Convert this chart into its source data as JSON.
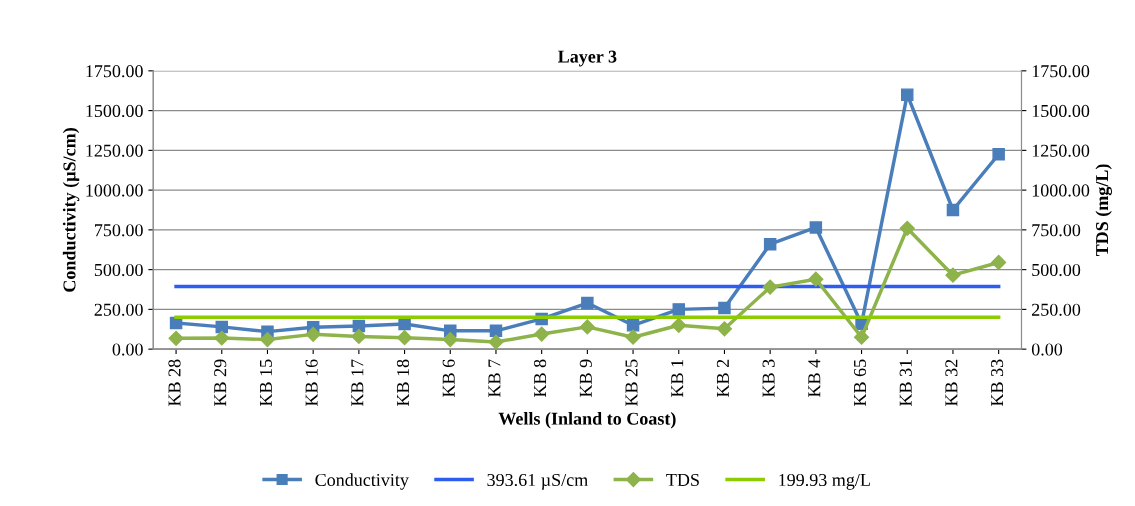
{
  "chart_data": {
    "type": "line",
    "title": "Layer 3",
    "xlabel": "Wells (Inland to Coast)",
    "ylabel": "Conductivity (µS/cm)",
    "y2label": "TDS (mg/L)",
    "categories": [
      "KB 28",
      "KB 29",
      "KB 15",
      "KB 16",
      "KB 17",
      "KB 18",
      "KB 6",
      "KB 7",
      "KB 8",
      "KB 9",
      "KB 25",
      "KB 1",
      "KB 2",
      "KB 3",
      "KB 4",
      "KB 65",
      "KB 31",
      "KB 32",
      "KB 33"
    ],
    "series": [
      {
        "name": "Conductivity",
        "color": "#4a7ebb",
        "marker": "square",
        "values": [
          165,
          140,
          110,
          138,
          145,
          158,
          115,
          115,
          190,
          290,
          150,
          250,
          258,
          660,
          765,
          160,
          1600,
          875,
          1225
        ]
      },
      {
        "name": "393.61 µS/cm",
        "color": "#2e5cf0",
        "marker": "none",
        "values": [
          393.61,
          393.61,
          393.61,
          393.61,
          393.61,
          393.61,
          393.61,
          393.61,
          393.61,
          393.61,
          393.61,
          393.61,
          393.61,
          393.61,
          393.61,
          393.61,
          393.61,
          393.61,
          393.61
        ]
      },
      {
        "name": "TDS",
        "color": "#8db34a",
        "marker": "diamond",
        "axis": "y2",
        "values": [
          68,
          70,
          60,
          93,
          80,
          72,
          60,
          45,
          95,
          140,
          75,
          150,
          128,
          390,
          440,
          75,
          760,
          465,
          545
        ]
      },
      {
        "name": "199.93 mg/L",
        "color": "#8ccc00",
        "marker": "none",
        "axis": "y2",
        "values": [
          199.93,
          199.93,
          199.93,
          199.93,
          199.93,
          199.93,
          199.93,
          199.93,
          199.93,
          199.93,
          199.93,
          199.93,
          199.93,
          199.93,
          199.93,
          199.93,
          199.93,
          199.93,
          199.93
        ]
      }
    ],
    "ylim": [
      0,
      1750
    ],
    "yticks": [
      {
        "value": 0,
        "label": "0.00"
      },
      {
        "value": 250,
        "label": "250.00"
      },
      {
        "value": 500,
        "label": "500.00"
      },
      {
        "value": 750,
        "label": "750.00"
      },
      {
        "value": 1000,
        "label": "1000.00"
      },
      {
        "value": 1250,
        "label": "1250.00"
      },
      {
        "value": 1500,
        "label": "1500.00"
      },
      {
        "value": 1750,
        "label": "1750.00"
      }
    ],
    "y2lim": [
      0,
      1750
    ],
    "y2ticks": [
      {
        "value": 0,
        "label": "0.00"
      },
      {
        "value": 250,
        "label": "250.00"
      },
      {
        "value": 500,
        "label": "500.00"
      },
      {
        "value": 750,
        "label": "750.00"
      },
      {
        "value": 1000,
        "label": "1000.00"
      },
      {
        "value": 1250,
        "label": "1250.00"
      },
      {
        "value": 1500,
        "label": "1500.00"
      },
      {
        "value": 1750,
        "label": "1750.00"
      }
    ],
    "grid": "y",
    "legend": "bottom",
    "line_style": "solid"
  }
}
